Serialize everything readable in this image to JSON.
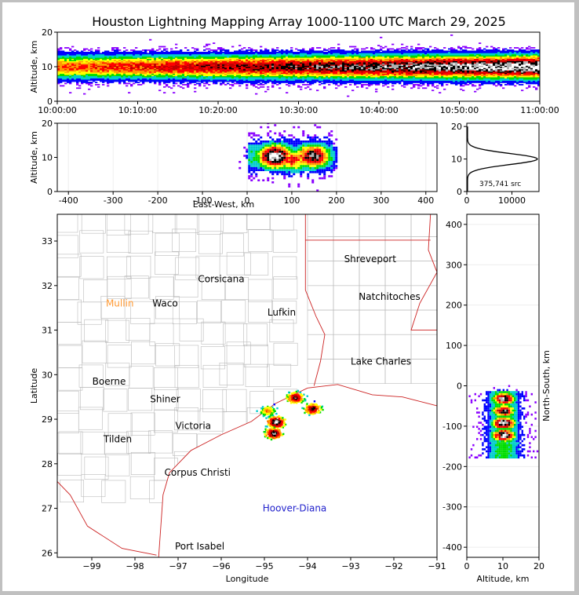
{
  "title": "Houston Lightning Mapping Array 1000-1100 UTC March 29, 2025",
  "colors": {
    "ramp": [
      "#ffffff",
      "#b0b0b0",
      "#000000",
      "#c00000",
      "#ff0000",
      "#ff9900",
      "#ffff00",
      "#00dd00",
      "#00cccc",
      "#0000ff",
      "#8a00ff"
    ],
    "state_border": "#cc2222",
    "county": "#bbbbbb",
    "network_orange": "#ff9933",
    "network_green": "#66dd22",
    "network_blue": "#2222cc"
  },
  "chart_data": [
    {
      "id": "time-height",
      "type": "heatmap",
      "x_ticks": [
        "10:00:00",
        "10:10:00",
        "10:20:00",
        "10:30:00",
        "10:40:00",
        "10:50:00",
        "11:00:00"
      ],
      "ylabel": "Altitude, km",
      "y_ticks": [
        0,
        10,
        20
      ],
      "ylim": [
        0,
        20
      ],
      "peak_altitude_km": 10,
      "source_altitude_range_km": [
        2,
        16
      ]
    },
    {
      "id": "east-west",
      "type": "heatmap",
      "xlabel": "East-West, km",
      "x_ticks": [
        -400,
        -300,
        -200,
        -100,
        0,
        100,
        200,
        300,
        400
      ],
      "xlim": [
        -425,
        425
      ],
      "ylabel": "Altitude, km",
      "y_ticks": [
        0,
        10,
        20
      ],
      "ylim": [
        0,
        20
      ],
      "source_x_range_km": [
        0,
        190
      ]
    },
    {
      "id": "altitude-histogram",
      "type": "line",
      "x_ticks": [
        0,
        10000
      ],
      "xlim": [
        0,
        16000
      ],
      "y_ticks": [
        0,
        10,
        20
      ],
      "ylim": [
        0,
        21
      ],
      "annotation": "375,741 src",
      "peak": {
        "altitude_km": 10,
        "count": 15500
      }
    },
    {
      "id": "plan-view",
      "type": "scatter",
      "xlabel": "Longitude",
      "ylabel": "Latitude",
      "x_ticks": [
        -99,
        -98,
        -97,
        -96,
        -95,
        -94,
        -93,
        -92,
        -91
      ],
      "y_ticks": [
        26,
        27,
        28,
        29,
        30,
        31,
        32,
        33
      ],
      "xlim": [
        -99.8,
        -91
      ],
      "ylim": [
        25.9,
        33.6
      ],
      "places": [
        {
          "name": "Shreveport",
          "lon": -92.55,
          "lat": 32.6,
          "color": "#000000"
        },
        {
          "name": "Corsicana",
          "lon": -96.0,
          "lat": 32.15,
          "color": "#000000"
        },
        {
          "name": "Natchitoches",
          "lon": -92.1,
          "lat": 31.75,
          "color": "#000000"
        },
        {
          "name": "Mullin",
          "lon": -98.35,
          "lat": 31.6,
          "color": "#ff9933"
        },
        {
          "name": "Waco",
          "lon": -97.3,
          "lat": 31.6,
          "color": "#000000"
        },
        {
          "name": "Lufkin",
          "lon": -94.6,
          "lat": 31.4,
          "color": "#000000"
        },
        {
          "name": "Lake Charles",
          "lon": -92.3,
          "lat": 30.3,
          "color": "#000000"
        },
        {
          "name": "Boerne",
          "lon": -98.6,
          "lat": 29.85,
          "color": "#000000"
        },
        {
          "name": "Shiner",
          "lon": -97.3,
          "lat": 29.45,
          "color": "#000000"
        },
        {
          "name": "Victoria",
          "lon": -96.65,
          "lat": 28.85,
          "color": "#000000"
        },
        {
          "name": "Tilden",
          "lon": -98.4,
          "lat": 28.55,
          "color": "#000000"
        },
        {
          "name": "Corpus Christi",
          "lon": -96.55,
          "lat": 27.8,
          "color": "#000000"
        },
        {
          "name": "Hoover-Diana",
          "lon": -94.3,
          "lat": 27.0,
          "color": "#2222cc"
        },
        {
          "name": "Port Isabel",
          "lon": -96.5,
          "lat": 26.15,
          "color": "#000000"
        }
      ],
      "storm_cells": [
        {
          "lon": -94.75,
          "lat": 28.95,
          "strength": 1.0
        },
        {
          "lon": -94.8,
          "lat": 28.7,
          "strength": 0.9
        },
        {
          "lon": -94.3,
          "lat": 29.5,
          "strength": 0.8
        },
        {
          "lon": -93.9,
          "lat": 29.25,
          "strength": 0.8
        },
        {
          "lon": -94.95,
          "lat": 29.2,
          "strength": 0.5
        }
      ]
    },
    {
      "id": "north-south",
      "type": "heatmap",
      "xlabel": "Altitude, km",
      "ylabel": "North-South, km",
      "x_ticks": [
        0,
        10,
        20
      ],
      "xlim": [
        0,
        20
      ],
      "y_ticks": [
        -400,
        -300,
        -200,
        -100,
        0,
        100,
        200,
        300,
        400
      ],
      "ylim": [
        -425,
        425
      ],
      "source_y_range_km": [
        -175,
        45
      ]
    }
  ]
}
